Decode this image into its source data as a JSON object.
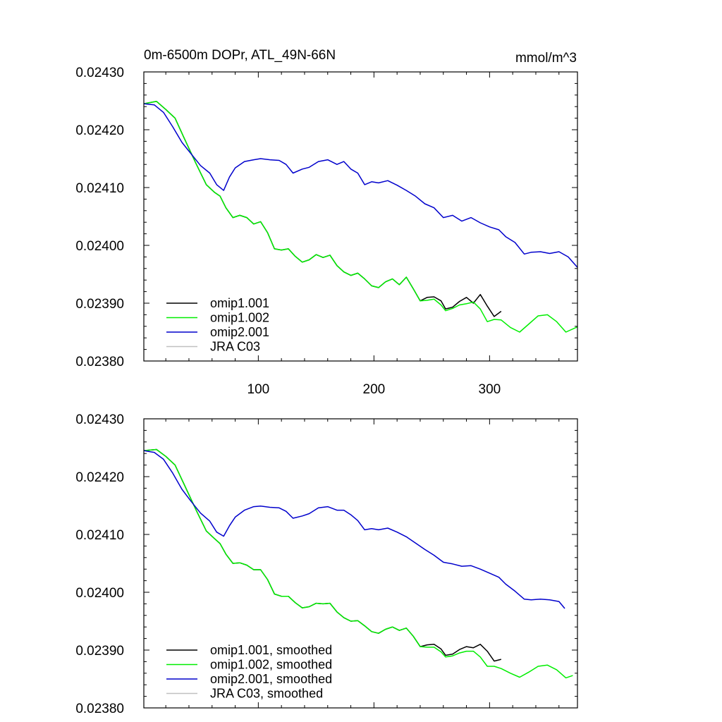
{
  "chart_data": [
    {
      "type": "line",
      "title": "0m-6500m DOPr, ATL_49N-66N",
      "units": "mmol/m^3",
      "xlabel": "",
      "ylabel": "",
      "xlim": [
        1,
        376
      ],
      "ylim": [
        0.0238,
        0.0243
      ],
      "xticks": [
        100,
        200,
        300
      ],
      "xtick_labels": [
        "100",
        "200",
        "300"
      ],
      "yticks": [
        0.0238,
        0.0239,
        0.024,
        0.0241,
        0.0242,
        0.0243
      ],
      "ytick_labels": [
        "0.02380",
        "0.02390",
        "0.02400",
        "0.02410",
        "0.02420",
        "0.02430"
      ],
      "grid": false,
      "legend_position": "bottom-left",
      "series": [
        {
          "name": "omip1.001",
          "color": "#000000",
          "x": [
            1,
            12,
            20,
            28,
            36,
            46,
            55,
            62,
            67,
            72,
            78,
            84,
            90,
            96,
            102,
            108,
            114,
            120,
            126,
            132,
            138,
            144,
            150,
            156,
            162,
            168,
            174,
            180,
            186,
            192,
            198,
            204,
            210,
            216,
            222,
            228,
            234,
            240,
            246,
            252,
            258,
            262,
            268,
            274,
            280,
            286,
            292,
            298,
            304,
            310
          ],
          "y": [
            0.024245,
            0.024249,
            0.024235,
            0.02422,
            0.024185,
            0.024142,
            0.024105,
            0.024092,
            0.024085,
            0.024065,
            0.024048,
            0.024052,
            0.024048,
            0.024037,
            0.024041,
            0.024022,
            0.023994,
            0.023992,
            0.023994,
            0.023981,
            0.023971,
            0.023975,
            0.023984,
            0.023979,
            0.023983,
            0.023965,
            0.023954,
            0.023948,
            0.023952,
            0.023942,
            0.02393,
            0.023927,
            0.023937,
            0.023942,
            0.023932,
            0.023945,
            0.023925,
            0.023904,
            0.02391,
            0.023911,
            0.023904,
            0.02389,
            0.023893,
            0.023903,
            0.02391,
            0.0239,
            0.023915,
            0.023895,
            0.023877,
            0.023886
          ]
        },
        {
          "name": "omip1.002",
          "color": "#00ee00",
          "x": [
            1,
            12,
            20,
            28,
            36,
            46,
            55,
            62,
            67,
            72,
            78,
            84,
            90,
            96,
            102,
            108,
            114,
            120,
            126,
            132,
            138,
            144,
            150,
            156,
            162,
            168,
            174,
            180,
            186,
            192,
            198,
            204,
            210,
            216,
            222,
            228,
            234,
            240,
            246,
            252,
            258,
            262,
            268,
            274,
            280,
            286,
            292,
            298,
            304,
            310,
            318,
            326,
            334,
            342,
            350,
            358,
            366,
            376
          ],
          "y": [
            0.024245,
            0.024249,
            0.024235,
            0.02422,
            0.024185,
            0.024142,
            0.024105,
            0.024092,
            0.024085,
            0.024065,
            0.024048,
            0.024052,
            0.024048,
            0.024037,
            0.024041,
            0.024022,
            0.023994,
            0.023992,
            0.023994,
            0.023981,
            0.023971,
            0.023975,
            0.023984,
            0.023979,
            0.023983,
            0.023965,
            0.023954,
            0.023948,
            0.023952,
            0.023942,
            0.02393,
            0.023927,
            0.023937,
            0.023942,
            0.023932,
            0.023945,
            0.023925,
            0.023904,
            0.023905,
            0.023907,
            0.023897,
            0.023887,
            0.023891,
            0.023897,
            0.023899,
            0.023902,
            0.02389,
            0.023868,
            0.023872,
            0.023871,
            0.023858,
            0.02385,
            0.023864,
            0.023878,
            0.02388,
            0.023868,
            0.02385,
            0.023859
          ]
        },
        {
          "name": "omip2.001",
          "color": "#0000cc",
          "x": [
            1,
            10,
            18,
            26,
            34,
            42,
            50,
            58,
            64,
            70,
            75,
            80,
            88,
            96,
            102,
            110,
            118,
            124,
            130,
            138,
            144,
            152,
            160,
            168,
            174,
            180,
            186,
            192,
            198,
            204,
            212,
            220,
            228,
            236,
            244,
            252,
            260,
            268,
            276,
            284,
            292,
            300,
            308,
            314,
            322,
            330,
            336,
            344,
            352,
            360,
            368,
            376
          ],
          "y": [
            0.024245,
            0.024243,
            0.02423,
            0.024205,
            0.024178,
            0.024158,
            0.024138,
            0.024125,
            0.024105,
            0.024095,
            0.024118,
            0.024134,
            0.024145,
            0.024148,
            0.02415,
            0.024148,
            0.024147,
            0.02414,
            0.024125,
            0.024132,
            0.024135,
            0.024145,
            0.024148,
            0.02414,
            0.024145,
            0.024132,
            0.024125,
            0.024105,
            0.02411,
            0.024108,
            0.024112,
            0.024104,
            0.024095,
            0.024085,
            0.024072,
            0.024065,
            0.024048,
            0.024052,
            0.024042,
            0.024048,
            0.024039,
            0.024032,
            0.024027,
            0.024015,
            0.024005,
            0.023985,
            0.023988,
            0.023989,
            0.023986,
            0.023989,
            0.02398,
            0.023962
          ]
        },
        {
          "name": "JRA C03",
          "color": "#c0c0c0",
          "x": [],
          "y": []
        }
      ]
    },
    {
      "type": "line",
      "title": "",
      "xlabel": "",
      "ylabel": "",
      "xlim": [
        1,
        376
      ],
      "ylim": [
        0.0238,
        0.0243
      ],
      "xticks": [
        100,
        200,
        300
      ],
      "xtick_labels": [],
      "yticks": [
        0.0238,
        0.0239,
        0.024,
        0.0241,
        0.0242,
        0.0243
      ],
      "ytick_labels": [
        "0.02380",
        "0.02390",
        "0.02400",
        "0.02410",
        "0.02420",
        "0.02430"
      ],
      "grid": false,
      "legend_position": "bottom-left",
      "series": [
        {
          "name": "omip1.001, smoothed",
          "color": "#000000",
          "x": [
            1,
            12,
            20,
            28,
            36,
            46,
            55,
            62,
            67,
            72,
            78,
            84,
            90,
            96,
            102,
            108,
            114,
            120,
            126,
            132,
            138,
            144,
            150,
            156,
            162,
            168,
            174,
            180,
            186,
            192,
            198,
            204,
            210,
            216,
            222,
            228,
            234,
            240,
            246,
            252,
            258,
            262,
            268,
            274,
            280,
            286,
            292,
            298,
            304,
            310
          ],
          "y": [
            0.024245,
            0.024247,
            0.024235,
            0.02422,
            0.024186,
            0.024143,
            0.024106,
            0.024093,
            0.024084,
            0.024066,
            0.02405,
            0.024051,
            0.024047,
            0.024039,
            0.024039,
            0.024022,
            0.023997,
            0.023993,
            0.023993,
            0.023982,
            0.023973,
            0.023975,
            0.023981,
            0.02398,
            0.023981,
            0.023966,
            0.023956,
            0.02395,
            0.023951,
            0.023942,
            0.023932,
            0.023929,
            0.023936,
            0.02394,
            0.023934,
            0.023938,
            0.023924,
            0.023906,
            0.023909,
            0.02391,
            0.023902,
            0.023891,
            0.023893,
            0.023901,
            0.023906,
            0.023904,
            0.02391,
            0.023898,
            0.023881,
            0.023884
          ]
        },
        {
          "name": "omip1.002, smoothed",
          "color": "#00ee00",
          "x": [
            1,
            12,
            20,
            28,
            36,
            46,
            55,
            62,
            67,
            72,
            78,
            84,
            90,
            96,
            102,
            108,
            114,
            120,
            126,
            132,
            138,
            144,
            150,
            156,
            162,
            168,
            174,
            180,
            186,
            192,
            198,
            204,
            210,
            216,
            222,
            228,
            234,
            240,
            246,
            252,
            258,
            262,
            268,
            274,
            280,
            286,
            292,
            298,
            304,
            310,
            318,
            326,
            334,
            342,
            350,
            358,
            366,
            372
          ],
          "y": [
            0.024245,
            0.024247,
            0.024235,
            0.02422,
            0.024186,
            0.024143,
            0.024106,
            0.024093,
            0.024084,
            0.024066,
            0.02405,
            0.024051,
            0.024047,
            0.024039,
            0.024039,
            0.024022,
            0.023997,
            0.023993,
            0.023993,
            0.023982,
            0.023973,
            0.023975,
            0.023981,
            0.02398,
            0.023981,
            0.023966,
            0.023956,
            0.02395,
            0.023951,
            0.023942,
            0.023932,
            0.023929,
            0.023936,
            0.02394,
            0.023934,
            0.023938,
            0.023924,
            0.023906,
            0.023905,
            0.023905,
            0.023897,
            0.023888,
            0.02389,
            0.023895,
            0.023898,
            0.023898,
            0.023888,
            0.023872,
            0.023872,
            0.023868,
            0.02386,
            0.023853,
            0.023862,
            0.023872,
            0.023874,
            0.023866,
            0.023852,
            0.023856
          ]
        },
        {
          "name": "omip2.001, smoothed",
          "color": "#0000cc",
          "x": [
            1,
            10,
            18,
            26,
            34,
            42,
            50,
            58,
            64,
            70,
            75,
            80,
            88,
            96,
            102,
            110,
            118,
            124,
            130,
            138,
            144,
            152,
            160,
            168,
            174,
            180,
            186,
            192,
            198,
            204,
            212,
            220,
            228,
            236,
            244,
            252,
            260,
            268,
            276,
            284,
            292,
            300,
            308,
            314,
            322,
            330,
            336,
            344,
            352,
            360,
            365
          ],
          "y": [
            0.024245,
            0.024242,
            0.02423,
            0.024206,
            0.024178,
            0.024157,
            0.024137,
            0.024123,
            0.024104,
            0.024097,
            0.024115,
            0.02413,
            0.024142,
            0.024148,
            0.024149,
            0.024147,
            0.024146,
            0.02414,
            0.024128,
            0.024132,
            0.024136,
            0.024146,
            0.024148,
            0.024142,
            0.024142,
            0.024134,
            0.024124,
            0.024108,
            0.02411,
            0.024108,
            0.024111,
            0.024104,
            0.024096,
            0.024085,
            0.024074,
            0.024064,
            0.024052,
            0.024049,
            0.024045,
            0.024046,
            0.02404,
            0.024033,
            0.024026,
            0.024014,
            0.024002,
            0.023988,
            0.023987,
            0.023988,
            0.023987,
            0.023984,
            0.023972
          ]
        },
        {
          "name": "JRA C03, smoothed",
          "color": "#c0c0c0",
          "x": [],
          "y": []
        }
      ]
    }
  ]
}
